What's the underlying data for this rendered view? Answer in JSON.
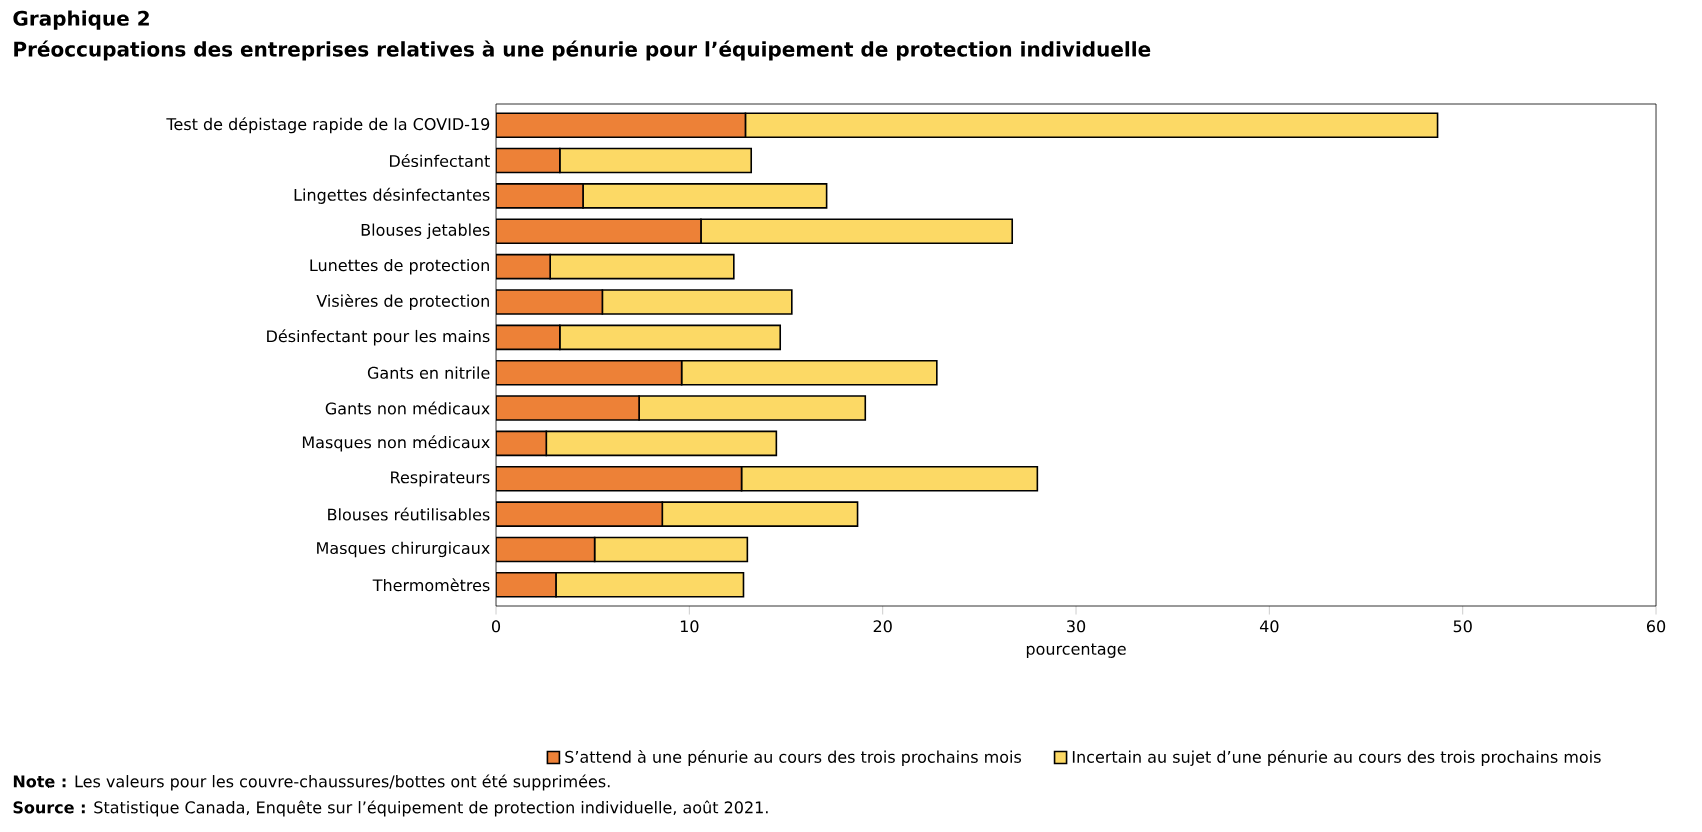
{
  "chart_data": {
    "type": "bar",
    "orientation": "horizontal",
    "stacked": true,
    "title": "Graphique 2",
    "subtitle": "Préoccupations des entreprises relatives à une pénurie pour l’équipement de protection individuelle",
    "categories": [
      "Test de dépistage rapide de la COVID-19",
      "Désinfectant",
      "Lingettes désinfectantes",
      "Blouses jetables",
      "Lunettes de protection",
      "Visières de protection",
      "Désinfectant pour les mains",
      "Gants en nitrile",
      "Gants non médicaux",
      "Masques non médicaux",
      "Respirateurs",
      "Blouses réutilisables",
      "Masques chirurgicaux",
      "Thermomètres"
    ],
    "series": [
      {
        "name": "S’attend à une pénurie au cours des trois prochains mois",
        "color": "#ed8137",
        "values": [
          12.9,
          3.3,
          4.5,
          10.6,
          2.8,
          5.5,
          3.3,
          9.6,
          7.4,
          2.6,
          12.7,
          8.6,
          5.1,
          3.1
        ]
      },
      {
        "name": "Incertain au sujet d’une pénurie au cours des trois prochains mois",
        "color": "#fcd965",
        "values": [
          35.8,
          9.9,
          12.6,
          16.1,
          9.5,
          9.8,
          11.4,
          13.2,
          11.7,
          11.9,
          15.3,
          10.1,
          7.9,
          9.7
        ]
      }
    ],
    "xlabel": "pourcentage",
    "xlim": [
      0,
      60
    ],
    "xticks": [
      0,
      10,
      20,
      30,
      40,
      50,
      60
    ],
    "grid": false,
    "legend": "bottom",
    "annotations": [
      "**Note :** Les valeurs pour les couvre-chaussures/bottes ont été supprimées.",
      "**Source :** Statistique Canada, Enquête sur l’équipement de protection individuelle, août 2021."
    ]
  }
}
